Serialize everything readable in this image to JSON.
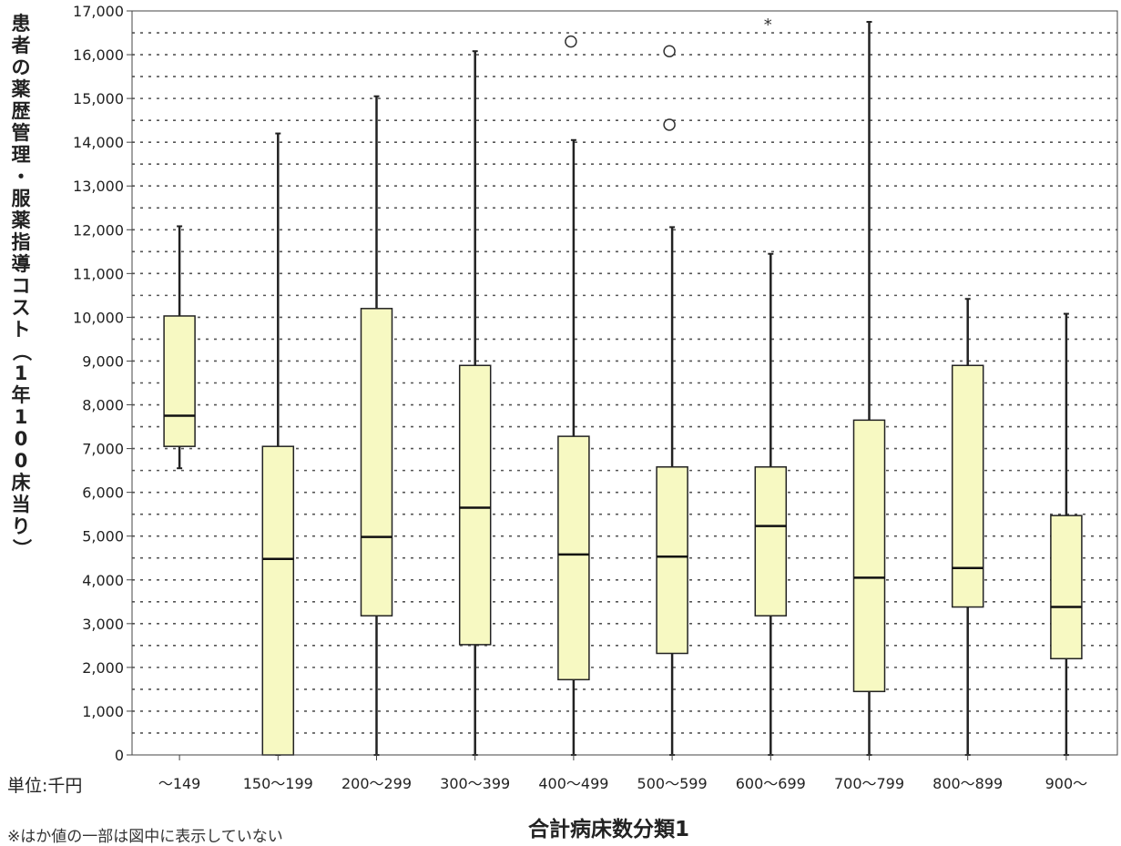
{
  "chart_data": {
    "type": "boxplot",
    "xlabel": "合計病床数分類1",
    "ylabel": "患者の薬歴管理・服薬指導コスト（1年100床当り）",
    "unit_note": "単位:千円",
    "footnote": "※はか値の一部は図中に表示していない",
    "ylim": [
      0,
      17000
    ],
    "ytick_step": 1000,
    "grid": "horizontal-dotted",
    "box_fill": "#f7f9c2",
    "categories": [
      "～149",
      "150～199",
      "200～299",
      "300～399",
      "400～499",
      "500～599",
      "600～699",
      "700～799",
      "800～899",
      "900～"
    ],
    "boxes": [
      {
        "min": 6550,
        "q1": 7050,
        "median": 7750,
        "q3": 10030,
        "max": 12080,
        "outliers": [],
        "extremes": []
      },
      {
        "min": 0,
        "q1": 0,
        "median": 4480,
        "q3": 7050,
        "max": 14200,
        "outliers": [],
        "extremes": []
      },
      {
        "min": 0,
        "q1": 3180,
        "median": 4980,
        "q3": 10200,
        "max": 15050,
        "outliers": [],
        "extremes": []
      },
      {
        "min": 0,
        "q1": 2520,
        "median": 5650,
        "q3": 8900,
        "max": 16080,
        "outliers": [],
        "extremes": []
      },
      {
        "min": 0,
        "q1": 1720,
        "median": 4580,
        "q3": 7280,
        "max": 14050,
        "outliers": [
          16300
        ],
        "extremes": []
      },
      {
        "min": 0,
        "q1": 2320,
        "median": 4530,
        "q3": 6580,
        "max": 12060,
        "outliers": [
          16080,
          14400
        ],
        "extremes": []
      },
      {
        "min": 0,
        "q1": 3180,
        "median": 5230,
        "q3": 6580,
        "max": 11450,
        "outliers": [],
        "extremes": [
          16750
        ]
      },
      {
        "min": 0,
        "q1": 1450,
        "median": 4050,
        "q3": 7650,
        "max": 16750,
        "outliers": [],
        "extremes": []
      },
      {
        "min": 0,
        "q1": 3380,
        "median": 4270,
        "q3": 8900,
        "max": 10420,
        "outliers": [],
        "extremes": []
      },
      {
        "min": 0,
        "q1": 2200,
        "median": 3380,
        "q3": 5470,
        "max": 10080,
        "outliers": [],
        "extremes": []
      }
    ]
  }
}
